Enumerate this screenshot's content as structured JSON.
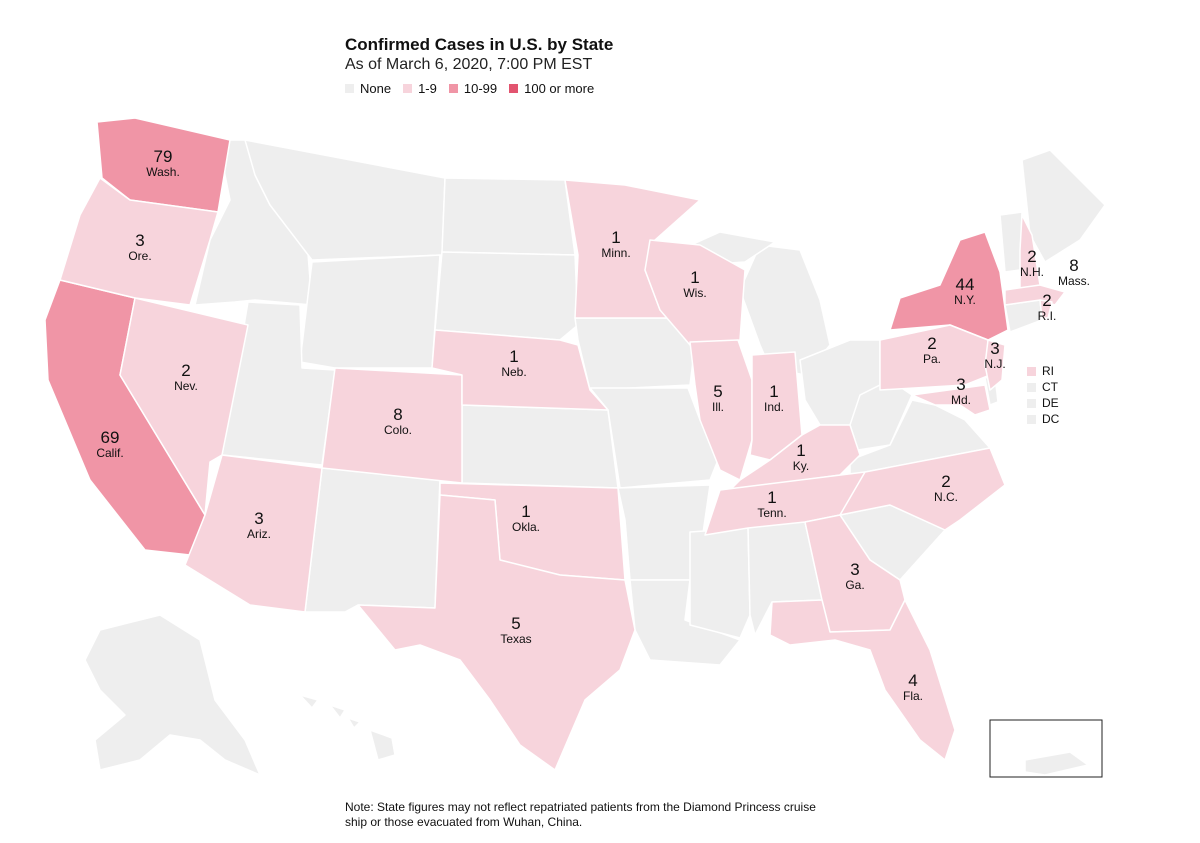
{
  "title": "Confirmed Cases in U.S. by State",
  "subtitle": "As of March 6, 2020, 7:00 PM EST",
  "legend": [
    {
      "label": "None",
      "color": "#eeeeee"
    },
    {
      "label": "1-9",
      "color": "#f7d4dc"
    },
    {
      "label": "10-99",
      "color": "#f095a6"
    },
    {
      "label": "100 or more",
      "color": "#e2546f"
    }
  ],
  "colors": {
    "none": "#eeeeee",
    "low": "#f7d4dc",
    "mid": "#f095a6",
    "high": "#e2546f"
  },
  "states": [
    {
      "name": "wash",
      "abbr": "Wash.",
      "cases": "79"
    },
    {
      "name": "ore",
      "abbr": "Ore.",
      "cases": "3"
    },
    {
      "name": "calif",
      "abbr": "Calif.",
      "cases": "69"
    },
    {
      "name": "nev",
      "abbr": "Nev.",
      "cases": "2"
    },
    {
      "name": "ariz",
      "abbr": "Ariz.",
      "cases": "3"
    },
    {
      "name": "colo",
      "abbr": "Colo.",
      "cases": "8"
    },
    {
      "name": "neb",
      "abbr": "Neb.",
      "cases": "1"
    },
    {
      "name": "okla",
      "abbr": "Okla.",
      "cases": "1"
    },
    {
      "name": "texas",
      "abbr": "Texas",
      "cases": "5"
    },
    {
      "name": "minn",
      "abbr": "Minn.",
      "cases": "1"
    },
    {
      "name": "wis",
      "abbr": "Wis.",
      "cases": "1"
    },
    {
      "name": "ill",
      "abbr": "Ill.",
      "cases": "5"
    },
    {
      "name": "ind",
      "abbr": "Ind.",
      "cases": "1"
    },
    {
      "name": "ky",
      "abbr": "Ky.",
      "cases": "1"
    },
    {
      "name": "tenn",
      "abbr": "Tenn.",
      "cases": "1"
    },
    {
      "name": "ga",
      "abbr": "Ga.",
      "cases": "3"
    },
    {
      "name": "fla",
      "abbr": "Fla.",
      "cases": "4"
    },
    {
      "name": "nc",
      "abbr": "N.C.",
      "cases": "2"
    },
    {
      "name": "pa",
      "abbr": "Pa.",
      "cases": "2"
    },
    {
      "name": "md",
      "abbr": "Md.",
      "cases": "3"
    },
    {
      "name": "nj",
      "abbr": "N.J.",
      "cases": "3"
    },
    {
      "name": "ny",
      "abbr": "N.Y.",
      "cases": "44"
    },
    {
      "name": "nh",
      "abbr": "N.H.",
      "cases": "2"
    },
    {
      "name": "mass",
      "abbr": "Mass.",
      "cases": "8"
    },
    {
      "name": "ri",
      "abbr": "R.I.",
      "cases": "2"
    }
  ],
  "small_states": [
    {
      "label": "RI",
      "color": "#f7d4dc"
    },
    {
      "label": "CT",
      "color": "#eeeeee"
    },
    {
      "label": "DE",
      "color": "#eeeeee"
    },
    {
      "label": "DC",
      "color": "#eeeeee"
    }
  ],
  "note": "Note: State figures may not reflect repatriated patients from the Diamond Princess cruise ship or those evacuated from Wuhan, China."
}
